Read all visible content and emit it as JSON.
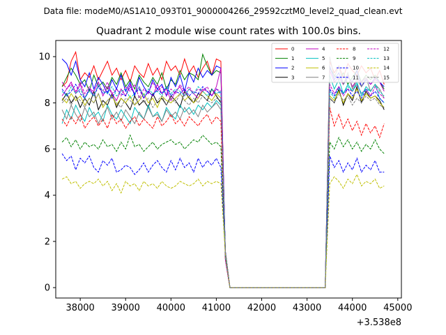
{
  "chart_data": {
    "type": "line",
    "suptitle": "Data file: modeM0/AS1A10_093T01_9000004266_29592cztM0_level2_quad_clean.evt",
    "title": "Quadrant 2 module wise count rates with 100.0s bins.",
    "xlabel": "",
    "ylabel": "",
    "x_offset_label": "+3.538e8",
    "xlim": [
      37460,
      45080
    ],
    "ylim": [
      -0.45,
      10.7
    ],
    "xticks": [
      38000,
      39000,
      40000,
      41000,
      42000,
      43000,
      44000,
      45000
    ],
    "xtick_labels": [
      "38000",
      "39000",
      "40000",
      "41000",
      "42000",
      "43000",
      "44000",
      "45000"
    ],
    "yticks": [
      0,
      2,
      4,
      6,
      8,
      10
    ],
    "ytick_labels": [
      "0",
      "2",
      "4",
      "6",
      "8",
      "10"
    ],
    "grid": false,
    "legend_position": "top-right",
    "legend_columns": 4,
    "x_grid": {
      "start": 37600,
      "step": 100,
      "count": 72
    },
    "series": [
      {
        "name": "0",
        "color": "#ff0000",
        "dash": "solid",
        "seg1": [
          8.7,
          8.9,
          9.8,
          10.2,
          9.0,
          9.3,
          9.1,
          9.6,
          9.0,
          9.4,
          9.8,
          9.2,
          9.5,
          9.0,
          9.4,
          8.9,
          9.6,
          9.3,
          9.1,
          9.7,
          9.2,
          9.5,
          9.0,
          9.8,
          9.4,
          9.6,
          9.2,
          9.9,
          9.3,
          9.6,
          9.1,
          9.5,
          9.8,
          9.2,
          9.9,
          9.8
        ],
        "seg2": [
          9.8,
          9.3,
          9.6,
          9.1,
          9.7,
          9.4,
          9.2,
          9.6,
          9.3,
          9.5,
          9.0,
          9.4,
          8.8
        ]
      },
      {
        "name": "1",
        "color": "#008000",
        "dash": "solid",
        "seg1": [
          8.7,
          9.1,
          9.5,
          9.2,
          8.8,
          9.0,
          8.5,
          9.2,
          8.7,
          8.9,
          8.6,
          9.1,
          8.8,
          9.3,
          8.7,
          9.0,
          8.6,
          9.2,
          8.9,
          8.7,
          9.1,
          8.8,
          9.3,
          8.6,
          9.0,
          8.8,
          9.4,
          9.0,
          9.3,
          9.2,
          9.0,
          10.1,
          9.6,
          9.2,
          9.4,
          9.3
        ],
        "seg2": [
          9.5,
          9.2,
          9.0,
          9.3,
          8.8,
          9.1,
          9.4,
          8.9,
          9.2,
          9.0,
          9.2,
          8.9,
          8.6
        ]
      },
      {
        "name": "2",
        "color": "#0000ff",
        "dash": "solid",
        "seg1": [
          9.9,
          9.7,
          9.2,
          9.8,
          9.0,
          8.7,
          9.3,
          8.6,
          9.1,
          8.8,
          8.4,
          9.0,
          8.6,
          9.2,
          8.5,
          8.9,
          8.3,
          9.1,
          8.7,
          8.4,
          9.0,
          8.6,
          8.8,
          8.3,
          9.1,
          8.7,
          9.2,
          8.5,
          9.3,
          8.9,
          9.5,
          9.1,
          9.4,
          9.2,
          9.6,
          9.5
        ],
        "seg2": [
          9.6,
          9.0,
          9.3,
          8.8,
          9.1,
          8.9,
          9.4,
          8.7,
          9.0,
          8.8,
          9.1,
          8.9,
          8.7
        ]
      },
      {
        "name": "3",
        "color": "#000000",
        "dash": "solid",
        "seg1": [
          8.1,
          8.4,
          8.0,
          8.3,
          7.8,
          8.2,
          7.9,
          8.5,
          7.7,
          8.1,
          7.9,
          8.4,
          7.8,
          8.2,
          8.0,
          7.7,
          8.3,
          7.9,
          8.1,
          7.8,
          8.4,
          8.0,
          8.2,
          7.9,
          8.3,
          8.1,
          7.8,
          8.5,
          8.2,
          8.0,
          8.4,
          8.3,
          8.1,
          8.6,
          8.3,
          8.0
        ],
        "seg2": [
          8.2,
          8.0,
          8.6,
          7.9,
          8.4,
          8.1,
          8.7,
          8.0,
          8.5,
          8.2,
          8.3,
          8.1,
          7.7
        ]
      },
      {
        "name": "4",
        "color": "#bf00bf",
        "dash": "solid",
        "seg1": [
          8.3,
          8.6,
          8.9,
          8.4,
          8.8,
          8.2,
          8.6,
          8.5,
          8.9,
          8.3,
          8.7,
          8.4,
          8.1,
          8.6,
          8.3,
          8.8,
          8.4,
          8.7,
          8.2,
          8.5,
          8.3,
          8.8,
          8.4,
          8.6,
          8.1,
          8.5,
          8.7,
          8.3,
          8.6,
          8.4,
          8.2,
          8.6,
          8.5,
          8.3,
          8.7,
          9.5
        ],
        "seg2": [
          9.4,
          8.9,
          9.1,
          8.8,
          9.2,
          8.7,
          9.0,
          8.9,
          9.1,
          8.8,
          9.0,
          8.9,
          8.5
        ]
      },
      {
        "name": "5",
        "color": "#00bfbf",
        "dash": "solid",
        "seg1": [
          7.1,
          7.7,
          7.3,
          7.9,
          7.5,
          7.2,
          7.8,
          7.4,
          7.6,
          7.2,
          7.9,
          7.5,
          7.3,
          7.7,
          7.4,
          7.1,
          7.8,
          7.5,
          7.3,
          7.9,
          7.4,
          7.6,
          7.2,
          7.8,
          7.5,
          7.3,
          7.9,
          7.6,
          7.8,
          7.5,
          7.9,
          7.7,
          8.0,
          7.8,
          8.1,
          7.9
        ],
        "seg2": [
          9.2,
          8.6,
          9.0,
          8.4,
          8.8,
          8.5,
          8.9,
          8.3,
          8.7,
          8.5,
          8.8,
          8.2,
          8.0
        ]
      },
      {
        "name": "6",
        "color": "#bfbf00",
        "dash": "solid",
        "seg1": [
          8.2,
          8.0,
          8.4,
          8.1,
          8.3,
          7.9,
          8.2,
          8.0,
          8.4,
          7.8,
          8.1,
          8.3,
          7.9,
          8.2,
          8.0,
          8.3,
          7.9,
          8.1,
          8.4,
          8.0,
          8.2,
          7.8,
          8.3,
          8.1,
          8.0,
          8.2,
          8.4,
          8.1,
          8.3,
          8.0,
          8.2,
          8.5,
          8.3,
          8.1,
          8.4,
          8.2
        ],
        "seg2": [
          8.3,
          8.1,
          8.5,
          8.0,
          8.4,
          8.2,
          8.6,
          8.1,
          8.4,
          8.2,
          8.3,
          8.0,
          7.8
        ]
      },
      {
        "name": "7",
        "color": "#808080",
        "dash": "solid",
        "seg1": [
          7.7,
          7.3,
          7.9,
          7.5,
          7.2,
          7.8,
          7.4,
          7.6,
          7.1,
          7.5,
          7.8,
          7.3,
          7.6,
          7.2,
          7.7,
          7.4,
          7.1,
          7.6,
          7.3,
          7.8,
          7.4,
          7.5,
          7.2,
          7.7,
          7.4,
          7.6,
          7.3,
          7.8,
          7.5,
          7.7,
          7.4,
          7.9,
          7.6,
          7.8,
          8.0,
          7.7
        ],
        "seg2": [
          10.0,
          9.1,
          9.6,
          8.8,
          9.3,
          8.6,
          9.0,
          8.7,
          9.1,
          8.5,
          8.8,
          8.6,
          8.2
        ]
      },
      {
        "name": "8",
        "color": "#ff0000",
        "dash": "dashed",
        "seg1": [
          7.3,
          7.0,
          7.4,
          7.1,
          7.5,
          6.9,
          7.2,
          7.4,
          7.0,
          7.3,
          6.9,
          7.5,
          7.1,
          7.3,
          6.9,
          7.2,
          7.4,
          7.0,
          7.3,
          7.1,
          6.9,
          7.4,
          7.0,
          7.2,
          7.5,
          7.1,
          7.3,
          7.0,
          7.4,
          7.2,
          7.0,
          7.3,
          7.5,
          7.1,
          7.4,
          7.2
        ],
        "seg2": [
          7.8,
          7.0,
          7.5,
          6.9,
          7.3,
          6.8,
          7.2,
          6.6,
          7.1,
          6.7,
          7.0,
          6.5,
          7.1
        ]
      },
      {
        "name": "9",
        "color": "#008000",
        "dash": "dashed",
        "seg1": [
          6.3,
          6.5,
          6.1,
          6.4,
          6.0,
          6.3,
          6.1,
          6.2,
          6.0,
          6.4,
          6.1,
          6.2,
          5.9,
          6.3,
          6.0,
          6.6,
          6.1,
          6.2,
          5.9,
          6.1,
          6.3,
          6.0,
          6.2,
          6.3,
          6.4,
          6.2,
          6.3,
          6.0,
          6.2,
          6.4,
          6.3,
          6.6,
          6.4,
          6.2,
          6.3,
          6.1
        ],
        "seg2": [
          6.3,
          6.0,
          6.5,
          6.1,
          6.4,
          6.0,
          6.3,
          5.9,
          6.2,
          6.0,
          6.4,
          6.0,
          5.8
        ]
      },
      {
        "name": "10",
        "color": "#0000ff",
        "dash": "dashed",
        "seg1": [
          5.8,
          5.5,
          5.7,
          5.1,
          5.6,
          5.4,
          5.7,
          5.2,
          5.0,
          5.5,
          5.3,
          5.6,
          5.0,
          5.1,
          5.3,
          5.2,
          4.9,
          5.1,
          5.4,
          5.0,
          5.3,
          5.5,
          5.2,
          5.0,
          5.5,
          5.1,
          5.6,
          5.2,
          5.4,
          5.0,
          5.6,
          5.2,
          5.5,
          5.3,
          5.6,
          5.2
        ],
        "seg2": [
          5.7,
          5.2,
          5.5,
          5.0,
          5.4,
          5.1,
          5.6,
          5.0,
          5.3,
          5.1,
          5.5,
          5.0,
          5.0
        ]
      },
      {
        "name": "11",
        "color": "#0000ff",
        "dash": "dashed",
        "seg1": [
          8.6,
          8.3,
          8.5,
          8.8,
          8.4,
          8.2,
          8.6,
          8.3,
          8.7,
          8.4,
          8.5,
          8.2,
          8.6,
          8.4,
          8.3,
          8.7,
          8.4,
          8.6,
          8.2,
          8.5,
          8.3,
          8.6,
          8.4,
          8.7,
          8.3,
          8.5,
          8.4,
          8.6,
          8.3,
          8.5,
          8.4,
          8.7,
          8.5,
          8.3,
          8.6,
          8.4
        ],
        "seg2": [
          8.6,
          8.3,
          8.7,
          8.4,
          8.6,
          8.3,
          8.5,
          8.2,
          8.6,
          8.3,
          8.5,
          8.2,
          8.0
        ]
      },
      {
        "name": "12",
        "color": "#bf00bf",
        "dash": "dashed",
        "seg1": [
          8.9,
          8.6,
          8.8,
          8.5,
          8.9,
          8.4,
          8.7,
          8.3,
          8.8,
          8.5,
          8.9,
          8.4,
          8.6,
          8.3,
          8.7,
          8.5,
          8.8,
          8.2,
          8.6,
          8.4,
          8.9,
          8.5,
          8.7,
          8.3,
          8.6,
          8.4,
          8.8,
          8.5,
          8.7,
          8.4,
          8.6,
          8.5,
          8.7,
          8.3,
          8.6,
          8.5
        ],
        "seg2": [
          8.8,
          8.4,
          8.7,
          8.3,
          8.6,
          8.5,
          8.8,
          8.4,
          8.6,
          8.3,
          8.7,
          8.4,
          8.2
        ]
      },
      {
        "name": "13",
        "color": "#00bfbf",
        "dash": "dashed",
        "seg1": [
          8.5,
          8.3,
          8.7,
          8.4,
          8.6,
          8.2,
          8.5,
          8.3,
          8.8,
          8.5,
          8.4,
          8.7,
          8.3,
          8.5,
          8.6,
          8.2,
          8.4,
          8.7,
          8.3,
          8.6,
          8.4,
          8.5,
          8.3,
          8.7,
          8.4,
          8.6,
          8.5,
          8.3,
          8.6,
          8.4,
          8.7,
          8.5,
          8.3,
          8.6,
          8.4,
          8.5
        ],
        "seg2": [
          8.5,
          8.2,
          8.6,
          8.4,
          8.7,
          8.5,
          8.8,
          8.4,
          8.6,
          8.5,
          8.8,
          8.5,
          8.3
        ]
      },
      {
        "name": "14",
        "color": "#bfbf00",
        "dash": "dashed",
        "seg1": [
          4.7,
          4.8,
          4.5,
          4.6,
          4.3,
          4.5,
          4.6,
          4.5,
          4.7,
          4.4,
          4.6,
          4.2,
          4.5,
          4.1,
          4.6,
          4.4,
          4.5,
          4.2,
          4.6,
          4.4,
          4.5,
          4.3,
          4.6,
          4.4,
          4.3,
          4.4,
          4.6,
          4.5,
          4.4,
          4.5,
          4.7,
          4.4,
          4.6,
          4.5,
          4.6,
          4.5
        ],
        "seg2": [
          4.5,
          4.8,
          4.6,
          4.3,
          4.7,
          4.5,
          4.9,
          4.4,
          4.6,
          4.5,
          4.7,
          4.3,
          4.4
        ]
      },
      {
        "name": "15",
        "color": "#808080",
        "dash": "dashed",
        "seg1": [
          8.0,
          8.2,
          7.9,
          8.3,
          8.1,
          7.8,
          8.2,
          8.0,
          8.4,
          7.9,
          8.1,
          8.3,
          8.0,
          7.8,
          8.2,
          8.1,
          7.9,
          8.3,
          8.0,
          8.2,
          7.8,
          8.1,
          8.3,
          7.9,
          8.2,
          8.0,
          8.4,
          8.1,
          7.9,
          8.2,
          8.0,
          8.3,
          8.1,
          8.0,
          8.2,
          8.1
        ],
        "seg2": [
          8.2,
          8.0,
          8.4,
          8.1,
          8.3,
          7.9,
          8.2,
          8.0,
          8.3,
          8.1,
          8.2,
          7.9,
          7.8
        ]
      }
    ]
  }
}
